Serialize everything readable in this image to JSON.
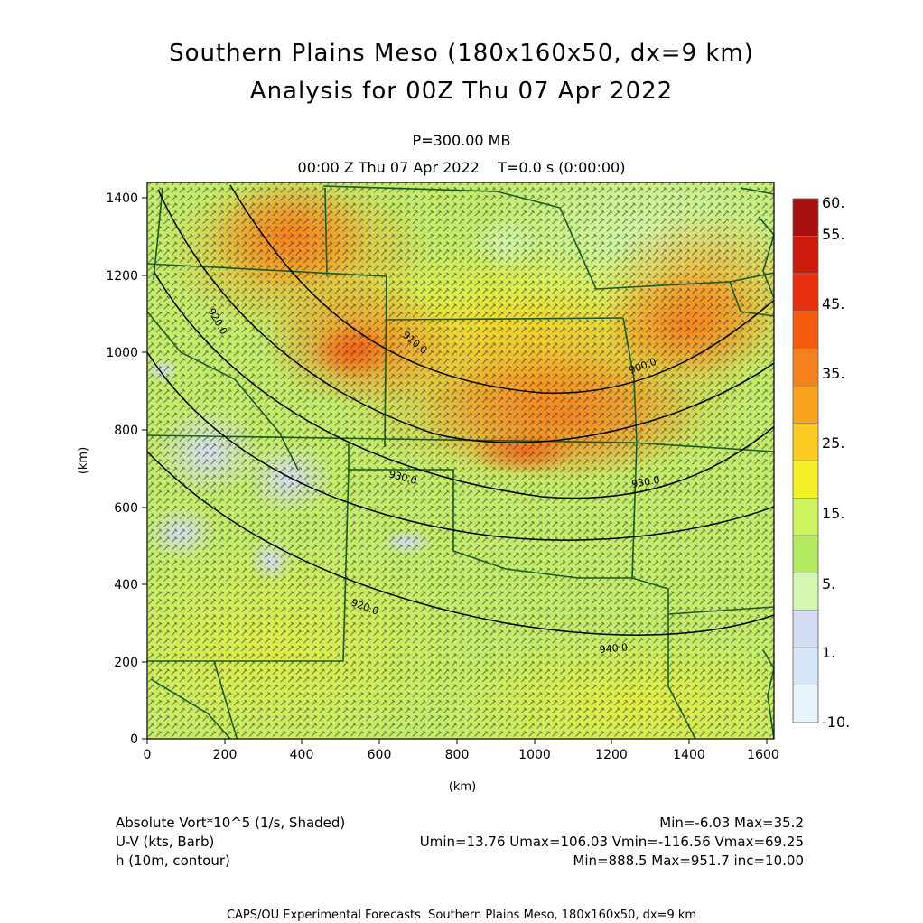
{
  "header": {
    "title_line1": "Southern Plains Meso (180x160x50, dx=9 km)",
    "title_line2": "Analysis for 00Z Thu 07 Apr 2022",
    "level": "P=300.00 MB",
    "time": "00:00 Z Thu 07 Apr 2022    T=0.0 s (0:00:00)"
  },
  "axes": {
    "x_ticks": [
      "0",
      "200",
      "400",
      "600",
      "800",
      "1000",
      "1200",
      "1400",
      "1600"
    ],
    "y_ticks": [
      "0",
      "200",
      "400",
      "600",
      "800",
      "1000",
      "1200",
      "1400"
    ],
    "x_label": "(km)",
    "y_label": "(km)"
  },
  "colorbar": {
    "labels": [
      "60.",
      "55.",
      "45.",
      "35.",
      "25.",
      "15.",
      "5.",
      "1.",
      "-10."
    ],
    "colors": [
      "#a80f0f",
      "#cc1a0f",
      "#e8300f",
      "#f55a0f",
      "#f7801e",
      "#f9a21d",
      "#fbcb23",
      "#f4ee2b",
      "#cff35f",
      "#b4ea60",
      "#d2f7b0",
      "#d5dcf5",
      "#d5e6f7",
      "#e6f5fc"
    ]
  },
  "legend": {
    "row1_left": "Absolute Vort*10^5 (1/s, Shaded)",
    "row1_right": "Min=-6.03 Max=35.2",
    "row2_left": "U-V (kts, Barb)",
    "row2_right": "Umin=13.76 Umax=106.03 Vmin=-116.56 Vmax=69.25",
    "row3_left": "h (10m, contour)",
    "row3_right": "Min=888.5 Max=951.7 inc=10.00"
  },
  "footer": {
    "text": "CAPS/OU Experimental Forecasts  Southern Plains Meso, 180x160x50, dx=9 km"
  },
  "contour_labels": [
    "900.0",
    "910.0",
    "920.0",
    "930.0",
    "940.0",
    "930.0",
    "920.0"
  ],
  "map": {
    "domain_km": {
      "x": [
        0,
        1620
      ],
      "y": [
        0,
        1440
      ]
    }
  }
}
